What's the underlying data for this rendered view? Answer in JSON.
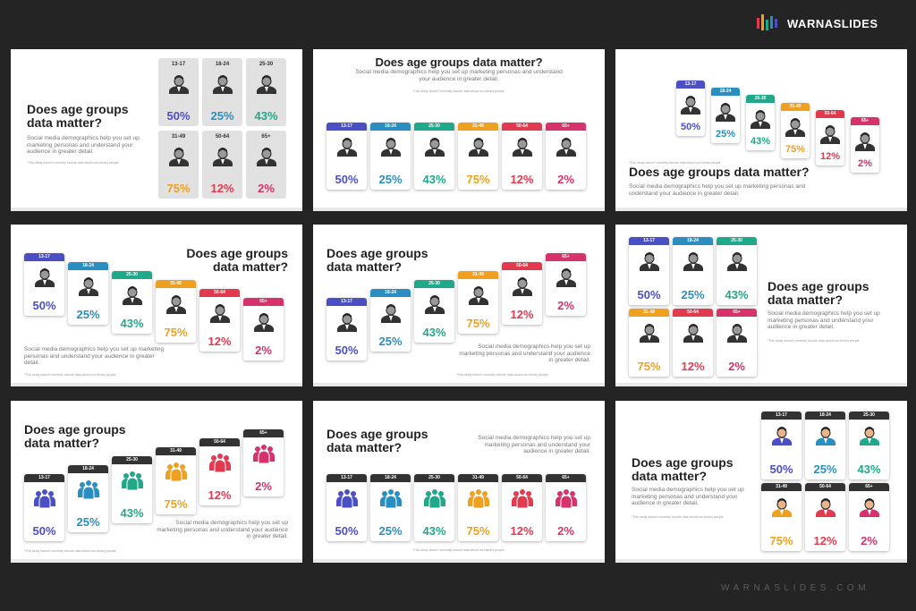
{
  "brand": "WARNASLIDES",
  "website": "WARNASLIDES.COM",
  "age_groups": [
    {
      "label": "13-17",
      "value": "50%",
      "color": "#4b4fc4"
    },
    {
      "label": "18-24",
      "value": "25%",
      "color": "#2a8fc0"
    },
    {
      "label": "25-30",
      "value": "43%",
      "color": "#1fa88a"
    },
    {
      "label": "31-49",
      "value": "75%",
      "color": "#f0a020"
    },
    {
      "label": "50-64",
      "value": "12%",
      "color": "#e23a4f"
    },
    {
      "label": "65+",
      "value": "2%",
      "color": "#d6336c"
    }
  ],
  "slides": [
    {
      "title": "Does age groups data matter?",
      "description": "Social media demographics help you set up marketing personas and understand your audience in greater detail.",
      "footnote": "*This study doesn't currently include data about non-binary people."
    },
    {
      "title": "Does age groups data matter?",
      "description": "Social media demographics help you set up marketing personas and understand your audience in greater detail.",
      "footnote": "*This study doesn't currently include data about non-binary people."
    },
    {
      "title": "Does age groups data matter?",
      "description": "Social media demographics help you set up marketing personas and understand your audience in greater detail.",
      "footnote": "*This study doesn't currently include data about non-binary people."
    },
    {
      "title": "Does age groups data matter?",
      "description": "Social media demographics help you set up marketing personas and understand your audience in greater detail.",
      "footnote": "*This study doesn't currently include data about non-binary people."
    },
    {
      "title": "Does age groups data matter?",
      "description": "Social media demographics help you set up marketing personas and understand your audience in greater detail.",
      "footnote": "*This study doesn't currently include data about non-binary people."
    },
    {
      "title": "Does age groups data matter?",
      "description": "Social media demographics help you set up marketing personas and understand your audience in greater detail.",
      "footnote": "*This study doesn't currently include data about non-binary people."
    },
    {
      "title": "Does age groups data matter?",
      "description": "Social media demographics help you set up marketing personas and understand your audience in greater detail.",
      "footnote": "*This study doesn't currently include data about non-binary people."
    },
    {
      "title": "Does age groups data matter?",
      "description": "Social media demographics help you set up marketing personas and understand your audience in greater detail.",
      "footnote": "*This study doesn't currently include data about non-binary people."
    },
    {
      "title": "Does age groups data matter?",
      "description": "Social media demographics help you set up marketing personas and understand your audience in greater detail.",
      "footnote": "*This study doesn't currently include data about non-binary people."
    }
  ]
}
